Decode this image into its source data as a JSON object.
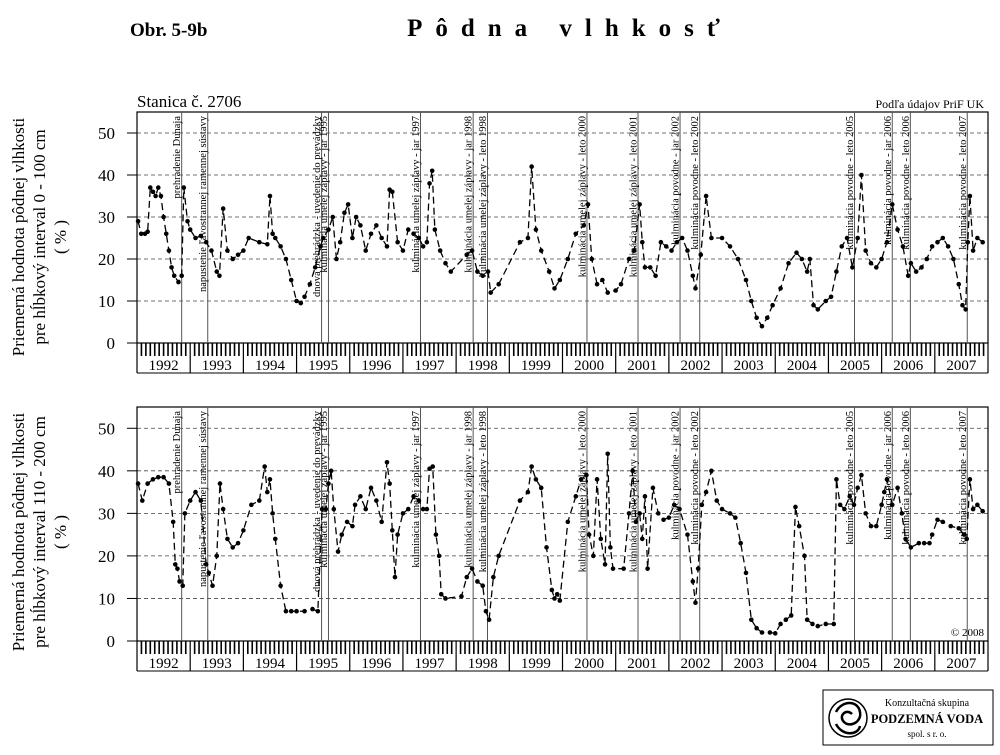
{
  "header": {
    "figure": "Obr. 5-9b",
    "title": "Pôdna vlhkosť",
    "station": "Stanica č. 2706",
    "source": "Podľa údajov PriF UK"
  },
  "logo": {
    "line1": "Konzultačná skupina",
    "line2": "PODZEMNÁ VODA",
    "line3": "spol. s r. o."
  },
  "chart_data": [
    {
      "type": "line",
      "color": "#000000",
      "grid": true,
      "ylabel": [
        "Priemerná hodnota pôdnej vlhkosti",
        "pre hĺbkový interval 0 - 100 cm",
        "( % )"
      ],
      "ylim": [
        0,
        55
      ],
      "yticks": [
        0,
        10,
        20,
        30,
        40,
        50
      ],
      "xlim": [
        1992,
        2008
      ],
      "xticks": [
        {
          "value": 1992.5,
          "label": "1992"
        },
        {
          "value": 1993.5,
          "label": "1993"
        },
        {
          "value": 1994.5,
          "label": "1994"
        },
        {
          "value": 1995.5,
          "label": "1995"
        },
        {
          "value": 1996.5,
          "label": "1996"
        },
        {
          "value": 1997.5,
          "label": "1997"
        },
        {
          "value": 1998.5,
          "label": "1998"
        },
        {
          "value": 1999.5,
          "label": "1999"
        },
        {
          "value": 2000.5,
          "label": "2000"
        },
        {
          "value": 2001.5,
          "label": "2001"
        },
        {
          "value": 2002.5,
          "label": "2002"
        },
        {
          "value": 2003.5,
          "label": "2003"
        },
        {
          "value": 2004.5,
          "label": "2004"
        },
        {
          "value": 2005.5,
          "label": "2005"
        },
        {
          "value": 2006.5,
          "label": "2006"
        },
        {
          "value": 2007.5,
          "label": "2007"
        }
      ],
      "events": [
        {
          "x": 1992.84,
          "label": "prehradenie Dunaja"
        },
        {
          "x": 1993.33,
          "label": "napustenie ľavostrannej ramennej sústavy"
        },
        {
          "x": 1995.47,
          "label": "dnová prehrádzka - uvedenie do prevádzky"
        },
        {
          "x": 1995.6,
          "label": "kulminácia umelej záplavy - jar 1995"
        },
        {
          "x": 1997.33,
          "label": "kulminácia umelej záplavy - jar 1997"
        },
        {
          "x": 1998.32,
          "label": "kulminácia umelej záplavy - jar 1998"
        },
        {
          "x": 1998.59,
          "label": "kulminácia umelej záplavy - leto 1998"
        },
        {
          "x": 2000.46,
          "label": "kulminácia umelej záplavy - leto 2000"
        },
        {
          "x": 2001.42,
          "label": "kulminácia umelej záplavy - leto 2001"
        },
        {
          "x": 2002.21,
          "label": "kulminácia povodne - jar 2002"
        },
        {
          "x": 2002.58,
          "label": "kulminácia povodne - leto 2002"
        },
        {
          "x": 2005.49,
          "label": "kulminácia povodne - leto 2005"
        },
        {
          "x": 2006.2,
          "label": "kulminácia povodne - jar 2006"
        },
        {
          "x": 2006.54,
          "label": "kulminácia povodne - leto 2006"
        },
        {
          "x": 2007.61,
          "label": "kulminácia povodne - leto 2007"
        }
      ],
      "x": [
        1992.02,
        1992.08,
        1992.15,
        1992.2,
        1992.25,
        1992.3,
        1992.35,
        1992.4,
        1992.45,
        1992.5,
        1992.55,
        1992.6,
        1992.65,
        1992.7,
        1992.78,
        1992.84,
        1992.88,
        1992.95,
        1993.0,
        1993.1,
        1993.2,
        1993.3,
        1993.4,
        1993.5,
        1993.55,
        1993.62,
        1993.7,
        1993.8,
        1993.9,
        1994.0,
        1994.1,
        1994.3,
        1994.45,
        1994.5,
        1994.55,
        1994.6,
        1994.7,
        1994.8,
        1994.9,
        1995.0,
        1995.08,
        1995.15,
        1995.25,
        1995.35,
        1995.45,
        1995.5,
        1995.6,
        1995.68,
        1995.75,
        1995.82,
        1995.9,
        1995.97,
        1996.05,
        1996.12,
        1996.2,
        1996.3,
        1996.4,
        1996.5,
        1996.6,
        1996.7,
        1996.75,
        1996.8,
        1996.9,
        1997.0,
        1997.1,
        1997.2,
        1997.3,
        1997.38,
        1997.45,
        1997.5,
        1997.55,
        1997.6,
        1997.7,
        1997.8,
        1997.9,
        1998.2,
        1998.3,
        1998.4,
        1998.5,
        1998.6,
        1998.65,
        1998.8,
        1999.2,
        1999.35,
        1999.42,
        1999.5,
        1999.6,
        1999.75,
        1999.85,
        1999.95,
        2000.1,
        2000.25,
        2000.4,
        2000.48,
        2000.55,
        2000.65,
        2000.75,
        2000.85,
        2001.0,
        2001.1,
        2001.25,
        2001.35,
        2001.45,
        2001.5,
        2001.55,
        2001.65,
        2001.75,
        2001.85,
        2001.95,
        2002.05,
        2002.15,
        2002.25,
        2002.35,
        2002.45,
        2002.5,
        2002.6,
        2002.7,
        2002.8,
        2003.0,
        2003.15,
        2003.3,
        2003.45,
        2003.55,
        2003.65,
        2003.75,
        2003.85,
        2003.95,
        2004.1,
        2004.25,
        2004.4,
        2004.5,
        2004.6,
        2004.65,
        2004.72,
        2004.8,
        2004.95,
        2005.05,
        2005.15,
        2005.25,
        2005.35,
        2005.45,
        2005.55,
        2005.62,
        2005.7,
        2005.8,
        2005.9,
        2006.0,
        2006.1,
        2006.2,
        2006.3,
        2006.4,
        2006.5,
        2006.55,
        2006.65,
        2006.75,
        2006.85,
        2006.95,
        2007.05,
        2007.15,
        2007.25,
        2007.35,
        2007.45,
        2007.52,
        2007.58,
        2007.62,
        2007.66,
        2007.72,
        2007.8,
        2007.9
      ],
      "values": [
        29,
        26,
        26,
        26.5,
        37,
        36,
        35,
        37,
        35,
        30,
        26,
        22,
        18,
        16,
        14.5,
        16,
        37,
        29,
        27,
        25,
        25.5,
        24,
        22,
        17,
        16,
        32,
        22,
        20,
        21,
        22,
        25,
        24,
        23.5,
        35,
        26,
        25,
        23,
        20,
        15,
        10,
        9.5,
        11,
        14,
        18,
        23,
        25,
        27,
        30,
        20,
        24,
        31,
        33,
        25,
        30,
        28,
        22,
        26,
        28,
        25,
        23,
        36.5,
        36,
        24,
        22,
        27,
        26,
        25,
        23,
        24,
        38,
        41,
        27,
        22,
        19,
        17,
        21,
        22,
        17,
        16,
        17,
        12,
        14,
        24,
        25,
        42,
        27,
        22,
        17,
        13,
        15,
        20,
        26,
        28,
        33,
        20,
        14,
        15,
        12,
        12.5,
        14,
        20,
        22,
        33,
        24,
        18,
        18,
        16,
        24,
        23,
        22,
        24,
        25,
        22,
        16,
        13,
        21,
        35,
        25,
        25,
        23,
        20,
        15,
        10,
        6,
        4,
        6,
        9,
        13,
        19,
        21.5,
        20,
        17,
        20,
        9,
        8,
        10,
        11,
        17,
        23,
        25,
        18,
        25,
        40,
        22,
        19,
        18,
        20,
        24,
        33,
        27,
        23,
        16,
        19,
        17,
        18,
        20,
        23,
        24,
        25,
        23,
        20,
        14,
        9,
        8,
        24,
        35,
        22,
        25,
        24
      ]
    },
    {
      "type": "line",
      "color": "#000000",
      "grid": true,
      "ylabel": [
        "Priemerná hodnota pôdnej vlhkosti",
        "pre hĺbkový interval 110 - 200 cm",
        "( % )"
      ],
      "annotation": "© 2008",
      "ylim": [
        0,
        55
      ],
      "yticks": [
        0,
        10,
        20,
        30,
        40,
        50
      ],
      "xlim": [
        1992,
        2008
      ],
      "xticks": [
        {
          "value": 1992.5,
          "label": "1992"
        },
        {
          "value": 1993.5,
          "label": "1993"
        },
        {
          "value": 1994.5,
          "label": "1994"
        },
        {
          "value": 1995.5,
          "label": "1995"
        },
        {
          "value": 1996.5,
          "label": "1996"
        },
        {
          "value": 1997.5,
          "label": "1997"
        },
        {
          "value": 1998.5,
          "label": "1998"
        },
        {
          "value": 1999.5,
          "label": "1999"
        },
        {
          "value": 2000.5,
          "label": "2000"
        },
        {
          "value": 2001.5,
          "label": "2001"
        },
        {
          "value": 2002.5,
          "label": "2002"
        },
        {
          "value": 2003.5,
          "label": "2003"
        },
        {
          "value": 2004.5,
          "label": "2004"
        },
        {
          "value": 2005.5,
          "label": "2005"
        },
        {
          "value": 2006.5,
          "label": "2006"
        },
        {
          "value": 2007.5,
          "label": "2007"
        }
      ],
      "events": [
        {
          "x": 1992.84,
          "label": "prehradenie Dunaja"
        },
        {
          "x": 1993.33,
          "label": "napustenie ľavostrannej ramennej sústavy"
        },
        {
          "x": 1995.47,
          "label": "dnová prehrádzka - uvedenie do prevádzky"
        },
        {
          "x": 1995.6,
          "label": "kulminácia umelej záplavy - jar 1995"
        },
        {
          "x": 1997.33,
          "label": "kulminácia umelej záplavy - jar 1997"
        },
        {
          "x": 1998.32,
          "label": "kulminácia umelej záplavy - jar 1998"
        },
        {
          "x": 1998.59,
          "label": "kulminácia umelej záplavy - leto 1998"
        },
        {
          "x": 2000.46,
          "label": "kulminácia umelej záplavy - leto 2000"
        },
        {
          "x": 2001.42,
          "label": "kulminácia umelej záplavy - leto 2001"
        },
        {
          "x": 2002.21,
          "label": "kulminácia povodne - jar 2002"
        },
        {
          "x": 2002.58,
          "label": "kulminácia povodne - leto 2002"
        },
        {
          "x": 2005.49,
          "label": "kulminácia povodne - leto 2005"
        },
        {
          "x": 2006.2,
          "label": "kulminácia povodne - jar 2006"
        },
        {
          "x": 2006.54,
          "label": "kulminácia povodne - leto 2006"
        },
        {
          "x": 2007.61,
          "label": "kulminácia povodne - leto 2007"
        }
      ],
      "x": [
        1992.02,
        1992.1,
        1992.2,
        1992.3,
        1992.4,
        1992.5,
        1992.6,
        1992.68,
        1992.72,
        1992.76,
        1992.8,
        1992.86,
        1992.9,
        1993.0,
        1993.1,
        1993.2,
        1993.3,
        1993.35,
        1993.42,
        1993.5,
        1993.56,
        1993.62,
        1993.7,
        1993.8,
        1993.9,
        1994.0,
        1994.15,
        1994.3,
        1994.4,
        1994.45,
        1994.5,
        1994.55,
        1994.6,
        1994.7,
        1994.8,
        1994.9,
        1995.0,
        1995.15,
        1995.3,
        1995.4,
        1995.48,
        1995.55,
        1995.6,
        1995.65,
        1995.7,
        1995.78,
        1995.85,
        1995.95,
        1996.05,
        1996.1,
        1996.2,
        1996.3,
        1996.4,
        1996.5,
        1996.6,
        1996.7,
        1996.75,
        1996.8,
        1996.85,
        1996.9,
        1997.0,
        1997.1,
        1997.2,
        1997.3,
        1997.38,
        1997.45,
        1997.5,
        1997.56,
        1997.62,
        1997.68,
        1997.72,
        1997.8,
        1998.1,
        1998.2,
        1998.3,
        1998.4,
        1998.5,
        1998.56,
        1998.62,
        1998.7,
        1998.8,
        1999.2,
        1999.35,
        1999.42,
        1999.5,
        1999.6,
        1999.7,
        1999.8,
        1999.85,
        1999.9,
        1999.95,
        2000.1,
        2000.25,
        2000.35,
        2000.45,
        2000.5,
        2000.58,
        2000.65,
        2000.72,
        2000.8,
        2000.85,
        2000.9,
        2000.95,
        2001.15,
        2001.25,
        2001.32,
        2001.38,
        2001.45,
        2001.5,
        2001.55,
        2001.6,
        2001.7,
        2001.8,
        2001.9,
        2002.0,
        2002.1,
        2002.2,
        2002.35,
        2002.45,
        2002.5,
        2002.55,
        2002.62,
        2002.7,
        2002.8,
        2002.9,
        2003.0,
        2003.15,
        2003.25,
        2003.35,
        2003.45,
        2003.55,
        2003.65,
        2003.75,
        2003.9,
        2004.0,
        2004.1,
        2004.2,
        2004.3,
        2004.38,
        2004.45,
        2004.55,
        2004.6,
        2004.7,
        2004.8,
        2004.95,
        2005.1,
        2005.15,
        2005.22,
        2005.3,
        2005.4,
        2005.48,
        2005.55,
        2005.62,
        2005.7,
        2005.8,
        2005.9,
        2006.0,
        2006.05,
        2006.1,
        2006.2,
        2006.3,
        2006.38,
        2006.45,
        2006.55,
        2006.7,
        2006.8,
        2006.9,
        2006.95,
        2007.05,
        2007.15,
        2007.3,
        2007.45,
        2007.55,
        2007.6,
        2007.66,
        2007.72,
        2007.8,
        2007.9
      ],
      "values": [
        37,
        33,
        37,
        38,
        38.5,
        38.5,
        37,
        28,
        18,
        17,
        14,
        13,
        30,
        33,
        35,
        33,
        18,
        16,
        13,
        20,
        37,
        31,
        24,
        22,
        23,
        26,
        32,
        33,
        41,
        35,
        38,
        30,
        24,
        13,
        7,
        7,
        7,
        7,
        7.5,
        7,
        31,
        31,
        37,
        40,
        31,
        21,
        25,
        28,
        27,
        32,
        34,
        31,
        36,
        33,
        28,
        42,
        37,
        26,
        15,
        25,
        30,
        31,
        34,
        33,
        31,
        31,
        40.5,
        41,
        25,
        20,
        11,
        10,
        10.5,
        15,
        17,
        14,
        13,
        7,
        5,
        15,
        20,
        33,
        35,
        41,
        38,
        36,
        22,
        12,
        10,
        11,
        9.5,
        28,
        34,
        38,
        39,
        25,
        20,
        38,
        24,
        18,
        44,
        22,
        17,
        17,
        30,
        40,
        28,
        30,
        24,
        34,
        17,
        36,
        30,
        28.5,
        29,
        32,
        31,
        25,
        14,
        9,
        17,
        32,
        35,
        40,
        33,
        31,
        30,
        29,
        23,
        16,
        5,
        3,
        2,
        2,
        1.8,
        4,
        5,
        6,
        31.5,
        27,
        20,
        5,
        4,
        3.5,
        4,
        4,
        38,
        32,
        31,
        34,
        32,
        36,
        39,
        30,
        27,
        27,
        32,
        35,
        38,
        32,
        36,
        30,
        24,
        22,
        23,
        23,
        23,
        25,
        28.5,
        28,
        27,
        26.5,
        25,
        24,
        38,
        31,
        32,
        30.5
      ]
    }
  ]
}
